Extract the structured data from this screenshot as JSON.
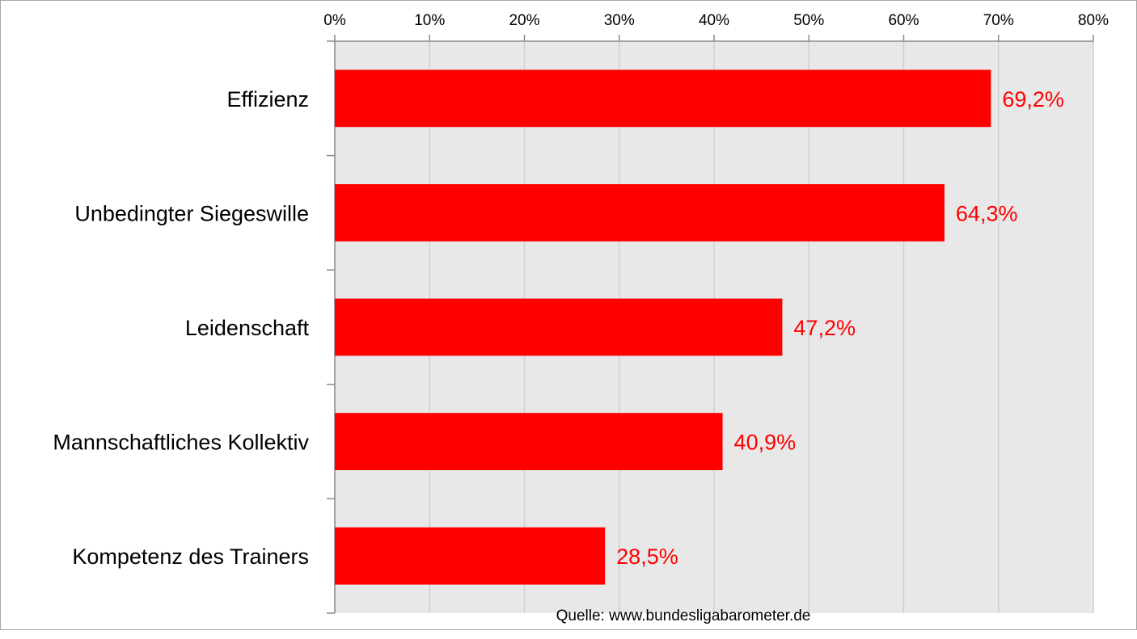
{
  "chart_data": {
    "type": "bar",
    "orientation": "horizontal",
    "categories": [
      "Effizienz",
      "Unbedingter Siegeswille",
      "Leidenschaft",
      "Mannschaftliches Kollektiv",
      "Kompetenz des Trainers"
    ],
    "values": [
      69.2,
      64.3,
      47.2,
      40.9,
      28.5
    ],
    "value_labels": [
      "69,2%",
      "64,3%",
      "47,2%",
      "40,9%",
      "28,5%"
    ],
    "xlim": [
      0,
      80
    ],
    "x_ticks": [
      0,
      10,
      20,
      30,
      40,
      50,
      60,
      70,
      80
    ],
    "x_tick_labels": [
      "0%",
      "10%",
      "20%",
      "30%",
      "40%",
      "50%",
      "60%",
      "70%",
      "80%"
    ],
    "x_axis_position": "top",
    "grid": true,
    "legend": "none",
    "title": "",
    "xlabel": "",
    "ylabel": ""
  },
  "source": "Quelle: www.bundesligabarometer.de",
  "colors": {
    "bar": "#ff0000",
    "value_label": "#ff0000",
    "plot_background": "#e8e8e8",
    "gridline": "#d0d0d0",
    "axis": "#888888"
  }
}
